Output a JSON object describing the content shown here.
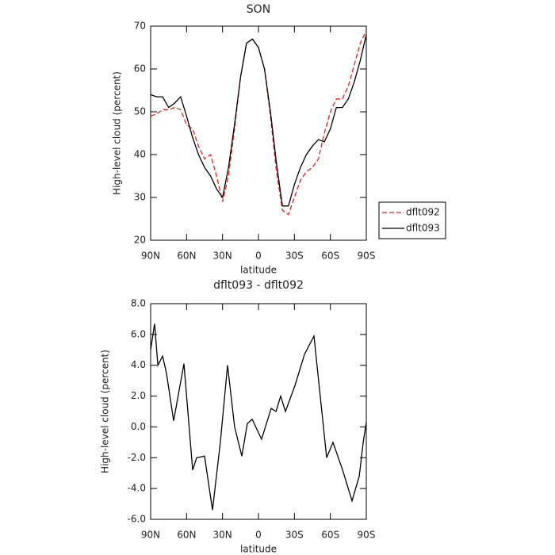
{
  "chart_data": [
    {
      "type": "line",
      "title": "SON",
      "xlabel": "latitude",
      "ylabel": "High-level cloud (percent)",
      "x": [
        90,
        85,
        80,
        75,
        70,
        65,
        60,
        55,
        50,
        45,
        40,
        35,
        30,
        25,
        20,
        15,
        10,
        5,
        0,
        -5,
        -10,
        -15,
        -20,
        -25,
        -30,
        -35,
        -40,
        -45,
        -50,
        -55,
        -60,
        -65,
        -70,
        -75,
        -80,
        -85,
        -90
      ],
      "series": [
        {
          "name": "dflt092",
          "color": "#e8211c",
          "dashed": true,
          "values": [
            49,
            49.5,
            50.5,
            50.5,
            51,
            50.5,
            47,
            46,
            42,
            39,
            40,
            35,
            29,
            35,
            46,
            58,
            66,
            67,
            65,
            60,
            49,
            36,
            27,
            26,
            30,
            34,
            36,
            37,
            39,
            45,
            50,
            53,
            53,
            56,
            61,
            66,
            69
          ]
        },
        {
          "name": "dflt093",
          "color": "#000000",
          "dashed": false,
          "values": [
            54,
            53.5,
            53.5,
            51,
            52,
            53.5,
            49,
            44,
            40,
            37,
            35,
            32,
            30,
            37,
            47,
            58,
            66,
            67,
            65,
            60,
            50,
            38,
            28,
            28,
            33,
            37,
            40,
            42,
            43.5,
            43,
            46,
            51,
            51,
            53,
            57,
            62,
            68
          ]
        }
      ],
      "xlim": [
        90,
        -90
      ],
      "xticks": [
        {
          "value": 90,
          "label": "90N"
        },
        {
          "value": 60,
          "label": "60N"
        },
        {
          "value": 30,
          "label": "30N"
        },
        0,
        {
          "value": -30,
          "label": "30S"
        },
        {
          "value": -60,
          "label": "60S"
        },
        {
          "value": -90,
          "label": "90S"
        }
      ],
      "ylim": [
        20,
        70
      ],
      "yticks": [
        20,
        30,
        40,
        50,
        60,
        70
      ],
      "legend": "right"
    },
    {
      "type": "line",
      "title": "dflt093 - dflt092",
      "xlabel": "latitude",
      "ylabel": "High-level cloud (percent)",
      "x": [
        90,
        86.7,
        84,
        80,
        76.8,
        70.8,
        62.2,
        54.9,
        51.6,
        45,
        38.4,
        31.8,
        25.8,
        19.9,
        13.9,
        9.3,
        5.3,
        -2.6,
        -10.6,
        -14.6,
        -18.5,
        -22.5,
        -30.5,
        -38.4,
        -46.3,
        -56.9,
        -62.2,
        -70.2,
        -78.1,
        -84.1,
        -87.4,
        -90
      ],
      "series": [
        {
          "color": "#000000",
          "dashed": false,
          "values": [
            5,
            6.7,
            4,
            4.6,
            3.5,
            0.4,
            4.1,
            -2.8,
            -2,
            -1.9,
            -5.4,
            -1,
            4,
            0,
            -1.9,
            0.2,
            0.5,
            -0.8,
            1.2,
            1,
            2,
            1,
            2.7,
            4.7,
            5.9,
            -2,
            -1,
            -2.8,
            -4.8,
            -3.2,
            -1,
            0.3
          ]
        }
      ],
      "xlim": [
        90,
        -90
      ],
      "xticks": [
        {
          "value": 90,
          "label": "90N"
        },
        {
          "value": 60,
          "label": "60N"
        },
        {
          "value": 30,
          "label": "30N"
        },
        0,
        {
          "value": -30,
          "label": "30S"
        },
        {
          "value": -60,
          "label": "60S"
        },
        {
          "value": -90,
          "label": "90S"
        }
      ],
      "ylim": [
        -6,
        8
      ],
      "yticks": [
        {
          "value": -6,
          "label": "-6.0"
        },
        {
          "value": -4,
          "label": "-4.0"
        },
        {
          "value": -2,
          "label": "-2.0"
        },
        {
          "value": 0,
          "label": "0.0"
        },
        {
          "value": 2,
          "label": "2.0"
        },
        {
          "value": 4,
          "label": "4.0"
        },
        {
          "value": 6,
          "label": "6.0"
        },
        {
          "value": 8,
          "label": "8.0"
        }
      ]
    }
  ]
}
